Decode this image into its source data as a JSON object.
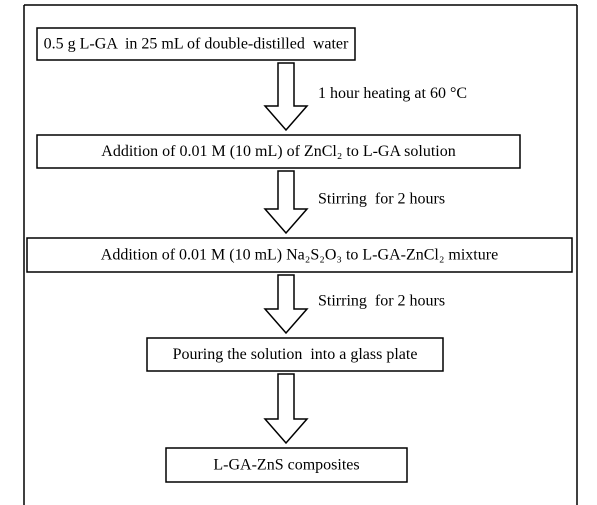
{
  "nodes": [
    {
      "label": "0.5 g L-GA  in 25 mL of double-distilled  water"
    },
    {
      "label": "Addition of 0.01 M (10 mL) of ZnCl₂ to L-GA solution"
    },
    {
      "label": "Addition of 0.01 M (10 mL) Na₂S₂O₃ to L-GA-ZnCl₂ mixture"
    },
    {
      "label": "Pouring the solution  into a glass plate"
    },
    {
      "label": "L-GA-ZnS composites"
    }
  ],
  "edges": [
    {
      "label": "1 hour heating at 60 °C"
    },
    {
      "label": "Stirring  for 2 hours"
    },
    {
      "label": "Stirring  for 2 hours"
    },
    {
      "label": ""
    }
  ]
}
